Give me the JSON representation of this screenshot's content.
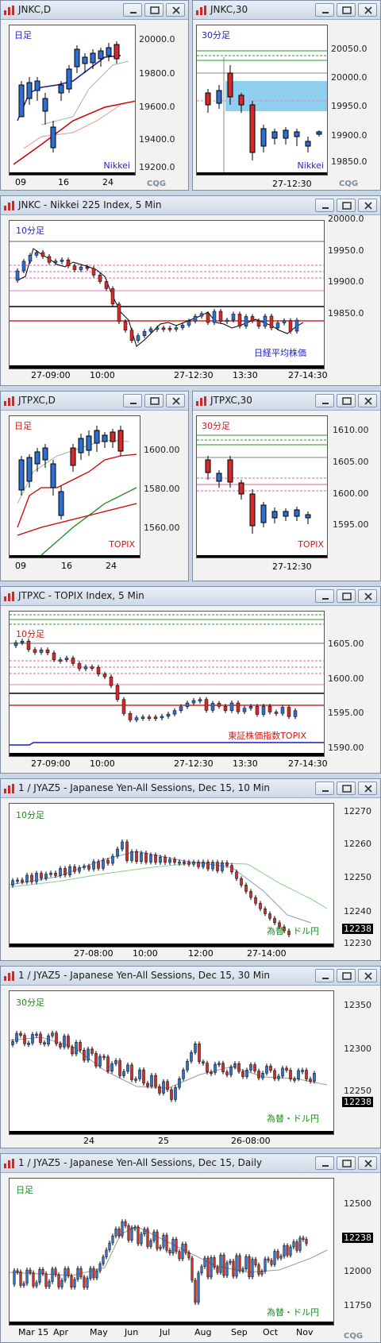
{
  "colors": {
    "up": "#2e6fd0",
    "down": "#d42a2a",
    "label_blue": "#2323c8",
    "label_red": "#d01818",
    "label_green": "#1e8a1e",
    "band": "#8fd0f0"
  },
  "windows": [
    {
      "id": "w1",
      "title": "JNKC,D",
      "period_label": "日足",
      "corner_label": "Nikkei",
      "y_ticks": [
        "20000.0",
        "19800.0",
        "19600.0",
        "19400.0",
        "19200.0"
      ],
      "x_ticks": [
        "09",
        "16",
        "24"
      ]
    },
    {
      "id": "w2",
      "title": "JNKC,30",
      "period_label": "30分足",
      "corner_label": "Nikkei",
      "y_ticks": [
        "20050.0",
        "20000.0",
        "19950.0",
        "19900.0",
        "19850.0"
      ],
      "x_ticks": [
        "27-12:30"
      ]
    },
    {
      "id": "w3",
      "title": "JNKC - Nikkei 225 Index, 5 Min",
      "period_label": "10分足",
      "corner_label": "日経平均株価",
      "y_ticks": [
        "20000.0",
        "19950.0",
        "19900.0",
        "19850.0"
      ],
      "x_ticks": [
        "27-09:00",
        "10:00",
        "27-12:30",
        "13:30",
        "27-14:30"
      ]
    },
    {
      "id": "w4",
      "title": "JTPXC,D",
      "period_label": "日足",
      "corner_label": "TOPIX",
      "y_ticks": [
        "1600.00",
        "1580.00",
        "1560.00"
      ],
      "x_ticks": [
        "09",
        "16",
        "24"
      ]
    },
    {
      "id": "w5",
      "title": "JTPXC,30",
      "period_label": "30分足",
      "corner_label": "TOPIX",
      "y_ticks": [
        "1610.00",
        "1605.00",
        "1600.00",
        "1595.00"
      ],
      "x_ticks": [
        "27-12:30"
      ]
    },
    {
      "id": "w6",
      "title": "JTPXC - TOPIX Index, 5 Min",
      "period_label": "10分足",
      "corner_label": "東証株価指数TOPIX",
      "y_ticks": [
        "1605.00",
        "1600.00",
        "1595.00",
        "1590.00"
      ],
      "x_ticks": [
        "27-09:00",
        "10:00",
        "27-12:30",
        "13:30",
        "27-14:30"
      ]
    },
    {
      "id": "w7",
      "title": "1 / JYAZ5 - Japanese Yen-All Sessions, Dec 15, 10 Min",
      "period_label": "10分足",
      "corner_label": "為替・ドル円",
      "y_ticks": [
        "12270",
        "12260",
        "12250",
        "12240",
        "12230"
      ],
      "last_price": "12238",
      "x_ticks": [
        "27-08:00",
        "10:00",
        "12:00",
        "27-14:00"
      ]
    },
    {
      "id": "w8",
      "title": "1 / JYAZ5 - Japanese Yen-All Sessions, Dec 15, 30 Min",
      "period_label": "30分足",
      "corner_label": "為替・ドル円",
      "y_ticks": [
        "12350",
        "12300",
        "12250"
      ],
      "last_price": "12238",
      "x_ticks": [
        "24",
        "25",
        "26-08:00"
      ]
    },
    {
      "id": "w9",
      "title": "1 / JYAZ5 - Japanese Yen-All Sessions, Dec 15, Daily",
      "period_label": "日足",
      "corner_label": "為替・ドル円",
      "y_ticks": [
        "12500",
        "12250",
        "12000",
        "11750"
      ],
      "last_price": "12238",
      "x_ticks": [
        "Mar 15",
        "Apr",
        "May",
        "Jun",
        "Jul",
        "Aug",
        "Sep",
        "Oct",
        "Nov"
      ]
    }
  ]
}
